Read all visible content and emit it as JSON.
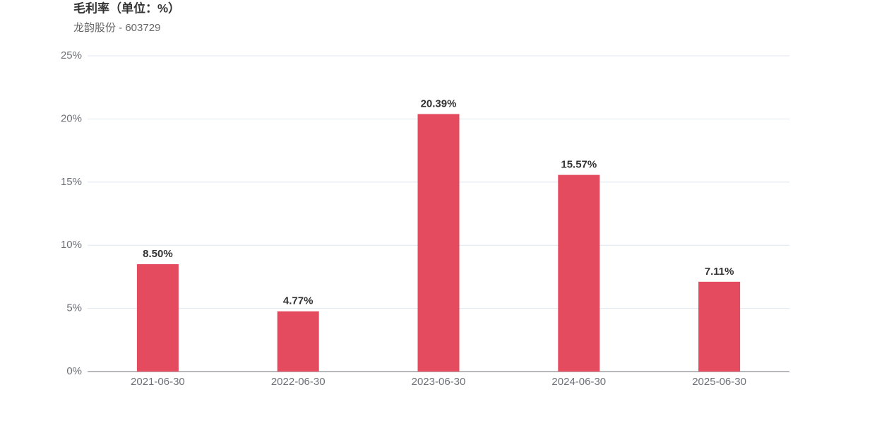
{
  "chart_data": {
    "type": "bar",
    "title": "毛利率（单位：%）",
    "subtitle": "龙韵股份 - 603729",
    "categories": [
      "2021-06-30",
      "2022-06-30",
      "2023-06-30",
      "2024-06-30",
      "2025-06-30"
    ],
    "values": [
      8.5,
      4.77,
      20.39,
      15.57,
      7.11
    ],
    "value_labels": [
      "8.50%",
      "4.77%",
      "20.39%",
      "15.57%",
      "7.11%"
    ],
    "color": "#e54b5e",
    "ylim": [
      0,
      25
    ],
    "yticks": [
      {
        "value": 0,
        "label": "0%"
      },
      {
        "value": 5,
        "label": "5%"
      },
      {
        "value": 10,
        "label": "10%"
      },
      {
        "value": 15,
        "label": "15%"
      },
      {
        "value": 20,
        "label": "20%"
      },
      {
        "value": 25,
        "label": "25%"
      }
    ],
    "grid": true
  }
}
